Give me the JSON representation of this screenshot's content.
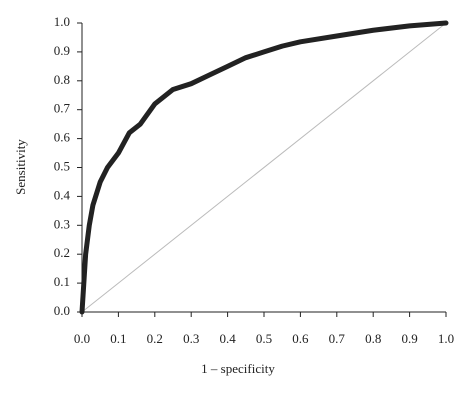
{
  "chart_data": {
    "type": "line",
    "xlabel": "1 – specificity",
    "ylabel": "Sensitivity",
    "xlim": [
      0,
      1
    ],
    "ylim": [
      0,
      1
    ],
    "xticks": [
      {
        "value": 0,
        "label": "0.0"
      },
      0.1,
      0.2,
      0.3,
      0.4,
      0.5,
      0.6,
      0.7,
      0.8,
      0.9,
      {
        "value": 1,
        "label": "1.0"
      }
    ],
    "yticks": [
      {
        "value": 0,
        "label": "0.0"
      },
      0.1,
      0.2,
      0.3,
      0.4,
      0.5,
      0.6,
      0.7,
      0.8,
      0.9,
      {
        "value": 1,
        "label": "1.0"
      }
    ],
    "series": [
      {
        "color": "#222222",
        "width": 5,
        "x": [
          0,
          0.005,
          0.01,
          0.02,
          0.03,
          0.05,
          0.07,
          0.1,
          0.13,
          0.16,
          0.2,
          0.25,
          0.3,
          0.35,
          0.4,
          0.45,
          0.5,
          0.55,
          0.6,
          0.7,
          0.8,
          0.9,
          1
        ],
        "values": [
          0,
          0.1,
          0.2,
          0.3,
          0.37,
          0.45,
          0.5,
          0.55,
          0.62,
          0.65,
          0.72,
          0.77,
          0.79,
          0.82,
          0.85,
          0.88,
          0.9,
          0.92,
          0.935,
          0.955,
          0.975,
          0.99,
          1
        ]
      },
      {
        "color": "#bbbbbb",
        "width": 1,
        "x": [
          0,
          1
        ],
        "values": [
          0,
          1
        ]
      }
    ]
  }
}
